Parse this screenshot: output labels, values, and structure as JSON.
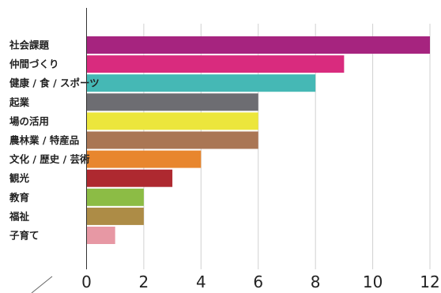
{
  "chart_data": {
    "type": "bar",
    "orientation": "horizontal",
    "categories": [
      "社会課題",
      "仲間づくり",
      "健康 / 食 / スポーツ",
      "起業",
      "場の活用",
      "農林業 / 特産品",
      "文化 / 歴史 / 芸術",
      "観光",
      "教育",
      "福祉",
      "子育て"
    ],
    "values": [
      12,
      9,
      8,
      6,
      6,
      6,
      4,
      3,
      2,
      2,
      1
    ],
    "colors": [
      "#a6247f",
      "#d92b7e",
      "#45b8b5",
      "#6d6d72",
      "#ece63c",
      "#aa7654",
      "#e8862e",
      "#ae2930",
      "#8cbc45",
      "#ad8c46",
      "#e798a4"
    ],
    "xlim": [
      0,
      12
    ],
    "xticks": [
      "0",
      "2",
      "4",
      "6",
      "8",
      "10",
      "12"
    ],
    "grid": true
  }
}
